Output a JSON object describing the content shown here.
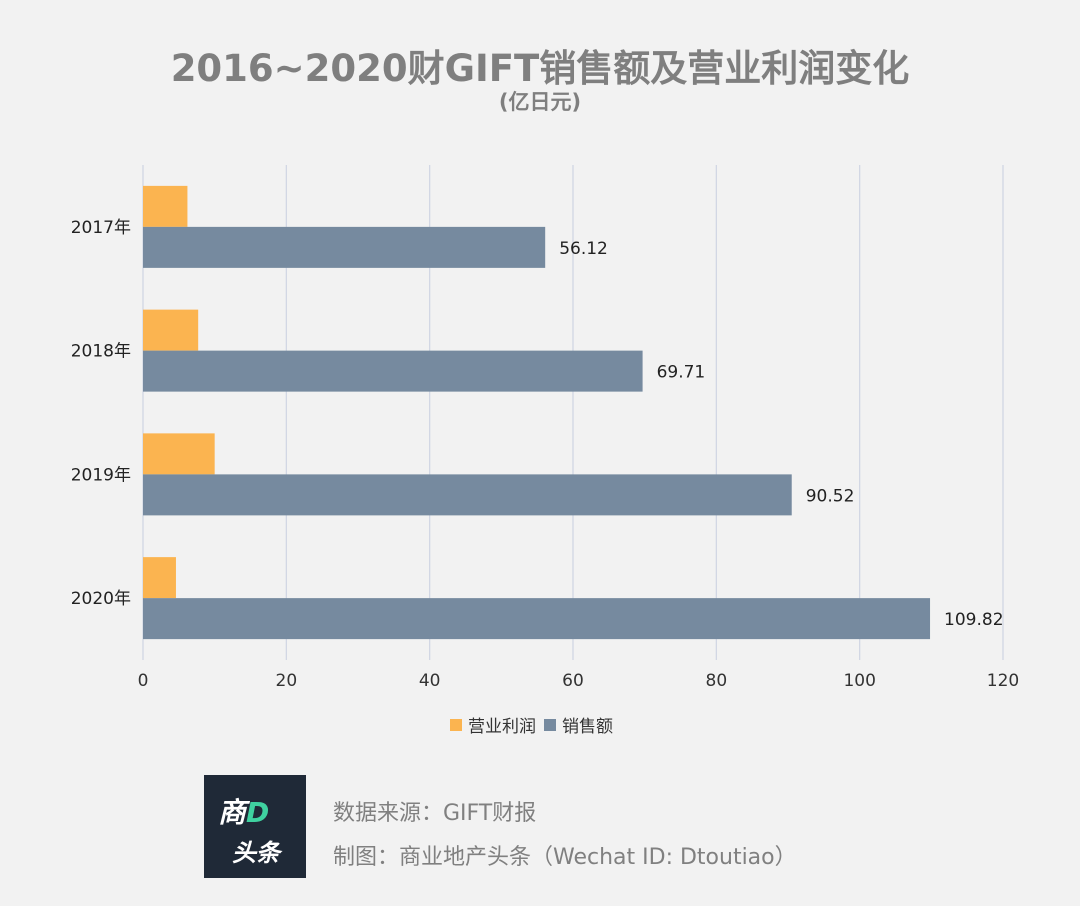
{
  "title": "2016~2020财GIFT销售额及营业利润变化",
  "subtitle": "(亿日元)",
  "chart_data": {
    "type": "bar",
    "orientation": "horizontal",
    "categories": [
      "2017年",
      "2018年",
      "2019年",
      "2020年"
    ],
    "series": [
      {
        "name": "营业利润",
        "values": [
          6.2,
          7.7,
          10.0,
          4.6
        ],
        "color": "#fbb450"
      },
      {
        "name": "销售额",
        "values": [
          56.12,
          69.71,
          90.52,
          109.82
        ],
        "color": "#768a9f"
      }
    ],
    "value_labels": [
      "56.12",
      "69.71",
      "90.52",
      "109.82"
    ],
    "xlim": [
      0,
      120
    ],
    "xticks": [
      "0",
      "20",
      "40",
      "60",
      "80",
      "100",
      "120"
    ],
    "grid": "vertical",
    "legend_position": "bottom"
  },
  "logo": {
    "line1_main": "商",
    "line1_accent": "D",
    "line2": "头条"
  },
  "footer": {
    "source": "数据来源：GIFT财报",
    "credit": "制图：商业地产头条（Wechat ID: Dtoutiao）"
  }
}
